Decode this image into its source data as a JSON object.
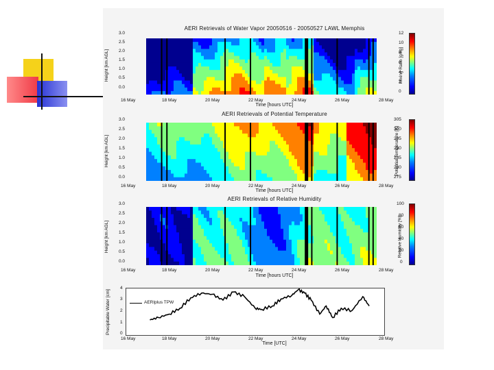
{
  "slide": {
    "accent_colors": [
      "#f5d21a",
      "#f03a46",
      "#2733d4",
      "#000000"
    ]
  },
  "colormap": [
    "#00008f",
    "#0000ff",
    "#0080ff",
    "#00ffff",
    "#80ff80",
    "#ffff00",
    "#ff8000",
    "#ff0000",
    "#800000"
  ],
  "chart_data": [
    {
      "type": "heatmap",
      "title": "AERI Retrievals of Water Vapor 20050516 - 20050527 LAWL Memphis",
      "xlabel": "Time [hours UTC]",
      "ylabel": "Height [km AGL]",
      "xticks": [
        "16 May",
        "18 May",
        "20 May",
        "22 May",
        "24 May",
        "26 May",
        "28 May"
      ],
      "yticks": [
        "0.0",
        "0.5",
        "1.0",
        "1.5",
        "2.0",
        "2.5",
        "3.0"
      ],
      "ylim": [
        0,
        3
      ],
      "colorbar_label": "Mixing Ratio [g/kg]",
      "colorbar_ticks": [
        "0",
        "2",
        "4",
        "6",
        "8",
        "10",
        "12"
      ],
      "clim": [
        0,
        12
      ],
      "profile_x": [
        16.5,
        17.0,
        17.5,
        18.0,
        18.5,
        19.0,
        19.5,
        20.0,
        20.5,
        21.0,
        21.5,
        22.0,
        22.5,
        23.0,
        23.5,
        24.0,
        24.5,
        25.0,
        25.5,
        26.0,
        26.5,
        27.0,
        27.4
      ],
      "profile_surface": [
        3,
        2,
        1.5,
        3,
        5,
        6,
        9,
        10,
        10,
        11,
        10,
        9,
        10,
        11,
        10,
        12,
        10,
        8,
        6,
        7,
        7,
        8,
        9
      ],
      "data_gaps": [
        17.2,
        17.45,
        20.2,
        21.4,
        24.0,
        24.3,
        25.5,
        27.0,
        27.2
      ]
    },
    {
      "type": "heatmap",
      "title": "AERI Retrievals of Potential Temperature",
      "xlabel": "Time [hours UTC]",
      "ylabel": "Height [km AGL]",
      "xticks": [
        "16 May",
        "18 May",
        "20 May",
        "22 May",
        "24 May",
        "26 May",
        "28 May"
      ],
      "yticks": [
        "0.0",
        "0.5",
        "1.0",
        "1.5",
        "2.0",
        "2.5",
        "3.0"
      ],
      "ylim": [
        0,
        3
      ],
      "colorbar_label": "Potential Temperature [K]",
      "colorbar_ticks": [
        "275",
        "280",
        "285",
        "290",
        "295",
        "300",
        "305"
      ],
      "clim": [
        275,
        305
      ]
    },
    {
      "type": "heatmap",
      "title": "AERI Retrievals of Relative Humidity",
      "xlabel": "Time [hours UTC]",
      "ylabel": "Height [km AGL]",
      "xticks": [
        "16 May",
        "18 May",
        "20 May",
        "22 May",
        "24 May",
        "26 May",
        "28 May"
      ],
      "yticks": [
        "0.0",
        "0.5",
        "1.0",
        "1.5",
        "2.0",
        "2.5",
        "3.0"
      ],
      "ylim": [
        0,
        3
      ],
      "colorbar_label": "Relative Humidity [%]",
      "colorbar_ticks": [
        "0",
        "20",
        "40",
        "60",
        "80",
        "100"
      ],
      "clim": [
        0,
        100
      ]
    },
    {
      "type": "line",
      "xlabel": "Time [UTC]",
      "ylabel": "Precipitable Water [cm]",
      "xticks": [
        "16 May",
        "18 May",
        "20 May",
        "22 May",
        "24 May",
        "26 May",
        "28 May"
      ],
      "yticks": [
        "0",
        "1",
        "2",
        "3",
        "4"
      ],
      "ylim": [
        0,
        4
      ],
      "xlim": [
        16,
        28
      ],
      "series": [
        {
          "name": "AERIplus TPW",
          "x": [
            17.1,
            17.5,
            18.0,
            18.5,
            19.0,
            19.5,
            20.0,
            20.5,
            21.0,
            21.5,
            22.0,
            22.3,
            22.8,
            23.2,
            23.7,
            24.0,
            24.3,
            24.6,
            25.0,
            25.3,
            25.6,
            26.0,
            26.5,
            27.0,
            27.3
          ],
          "y": [
            1.3,
            1.5,
            1.8,
            2.3,
            3.2,
            3.6,
            3.5,
            3.0,
            3.7,
            3.3,
            2.3,
            2.2,
            2.5,
            3.1,
            3.4,
            3.9,
            3.6,
            3.0,
            1.8,
            2.5,
            1.5,
            2.3,
            2.1,
            3.3,
            2.5
          ]
        }
      ]
    }
  ]
}
